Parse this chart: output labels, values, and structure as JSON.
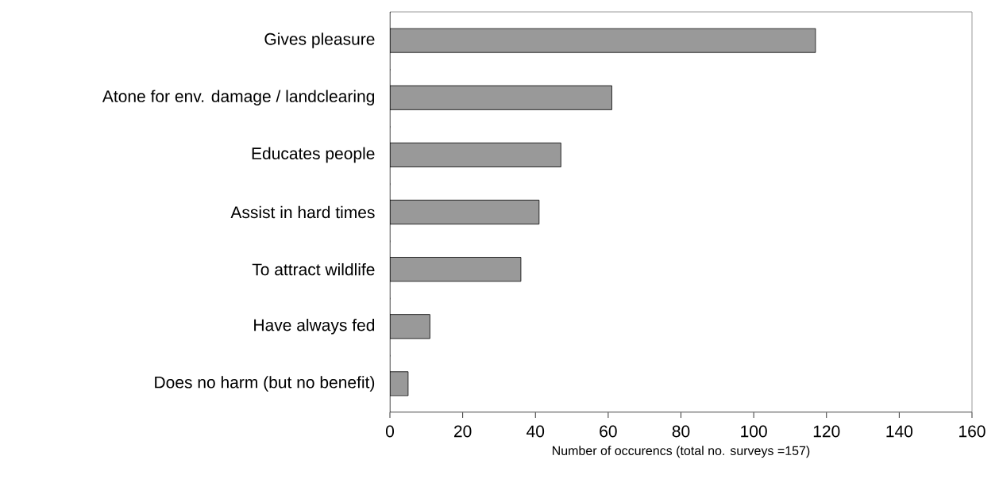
{
  "chart_data": {
    "type": "bar",
    "orientation": "horizontal",
    "xlabel": "Number of occurencs (total no. surveys =157)",
    "categories": [
      "Gives pleasure",
      "Atone for env.  damage / landclearing",
      "Educates people",
      "Assist in hard times",
      "To attract wildlife",
      "Have always fed",
      "Does no harm (but no benefit)"
    ],
    "values": [
      117,
      61,
      47,
      41,
      36,
      11,
      5
    ],
    "color": "#999999",
    "xlim": [
      0,
      160
    ],
    "xticks": [
      0,
      20,
      40,
      60,
      80,
      100,
      120,
      140,
      160
    ]
  }
}
